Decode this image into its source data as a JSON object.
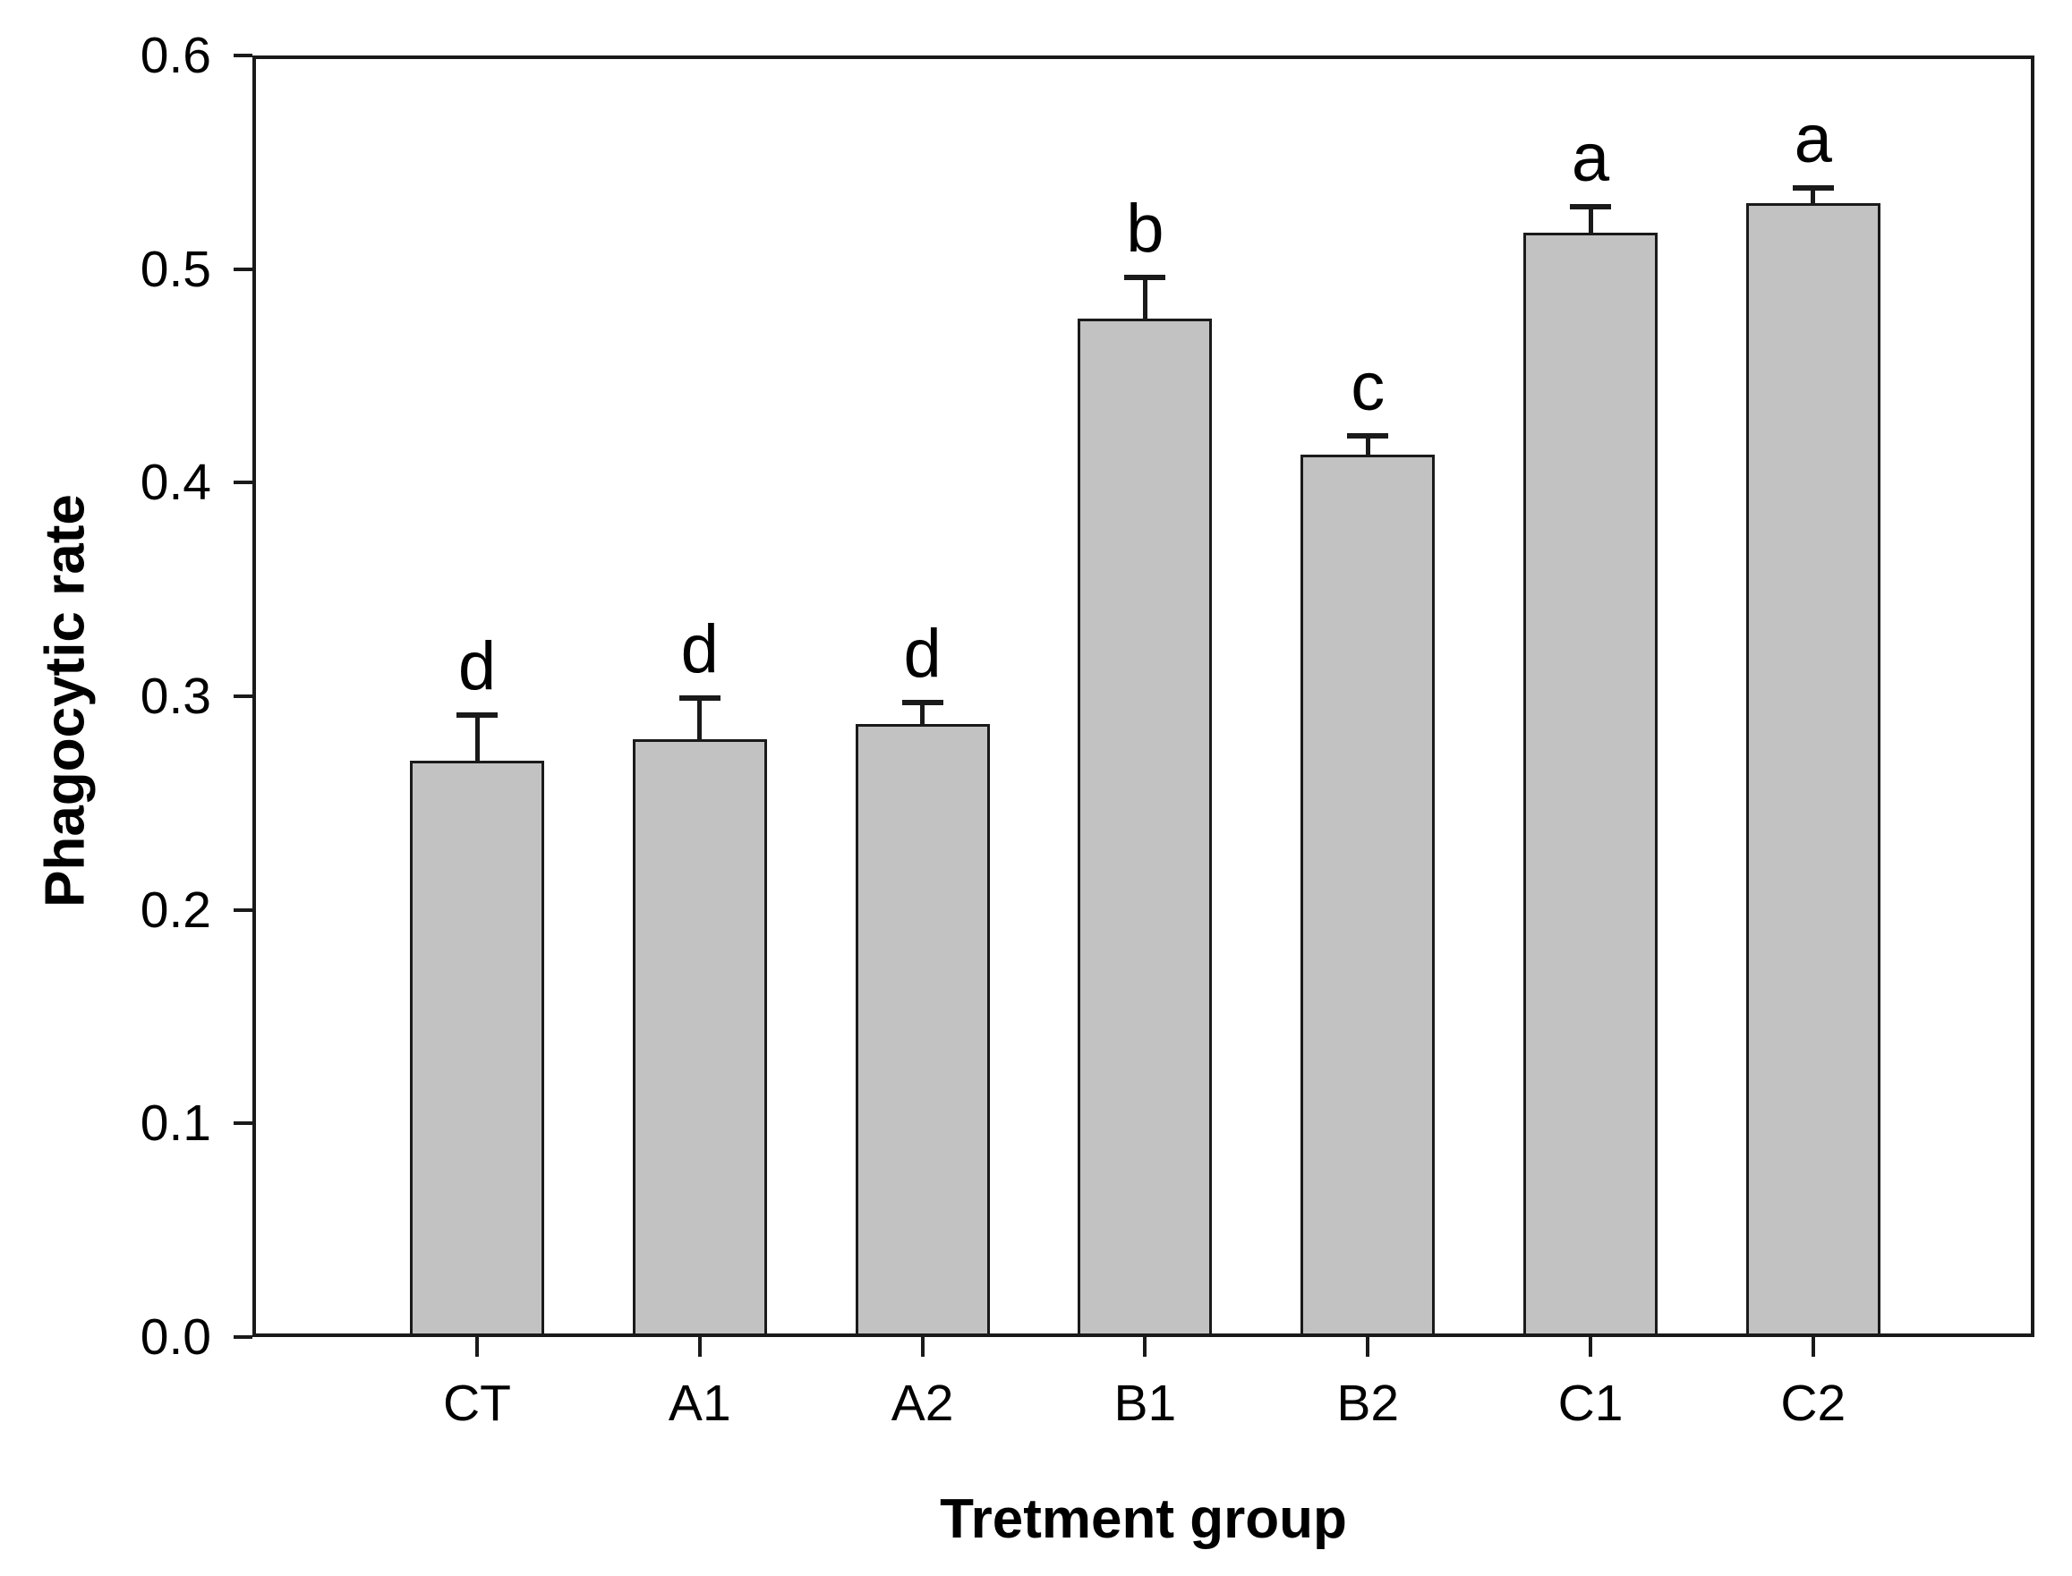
{
  "figure": {
    "background_color": "#ffffff",
    "bar_fill_color": "#c2c2c2",
    "bar_border_color": "#1a1a1a",
    "axis_color": "#1a1a1a",
    "text_color": "#000000"
  },
  "chart_data": {
    "type": "bar",
    "title": "",
    "xlabel": "Tretment group",
    "ylabel": "Phagocytic rate",
    "categories": [
      "CT",
      "A1",
      "A2",
      "B1",
      "B2",
      "C1",
      "C2"
    ],
    "series": [
      {
        "name": "Phagocytic rate",
        "values": [
          0.27,
          0.28,
          0.287,
          0.477,
          0.413,
          0.517,
          0.531
        ],
        "errors_upper": [
          0.021,
          0.019,
          0.01,
          0.019,
          0.009,
          0.012,
          0.007
        ],
        "significance_letters": [
          "d",
          "d",
          "d",
          "b",
          "c",
          "a",
          "a"
        ]
      }
    ],
    "ylim": [
      0.0,
      0.6
    ],
    "yticks": [
      0.0,
      0.1,
      0.2,
      0.3,
      0.4,
      0.5,
      0.6
    ],
    "ytick_labels": [
      "0.0",
      "0.1",
      "0.2",
      "0.3",
      "0.4",
      "0.5",
      "0.6"
    ],
    "grid": false,
    "legend": null,
    "error_bars": "upper-only",
    "frame": "full-box"
  }
}
